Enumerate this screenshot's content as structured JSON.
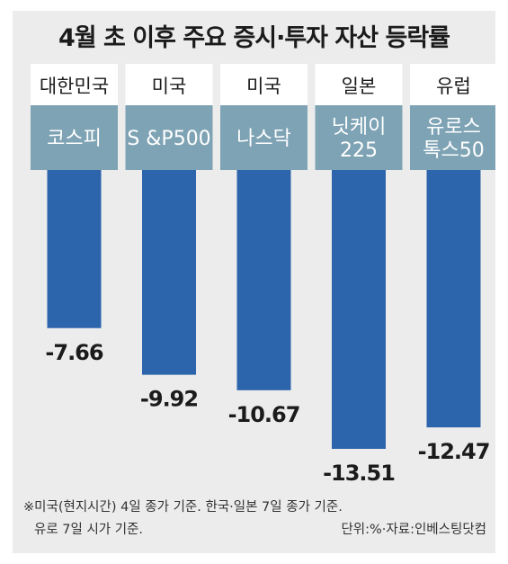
{
  "colors": {
    "background": "#edecec",
    "header_box": "#ffffff",
    "label_band": "#7ea3b4",
    "bar": "#2d65ad",
    "label_text": "#ffffff",
    "value_text": "#1b1b1b"
  },
  "chart_data": {
    "type": "bar",
    "title": "4월 초 이후 주요 증시·투자 자산 등락률",
    "countries": [
      "대한민국",
      "미국",
      "미국",
      "일본",
      "유럽"
    ],
    "categories": [
      [
        "코스피"
      ],
      [
        "S &P500"
      ],
      [
        "나스닥"
      ],
      [
        "닛케이",
        "225"
      ],
      [
        "유로스",
        "톡스50"
      ]
    ],
    "values": [
      -7.66,
      -9.92,
      -10.67,
      -13.51,
      -12.47
    ],
    "value_labels": [
      "-7.66",
      "-9.92",
      "-10.67",
      "-13.51",
      "-12.47"
    ],
    "ylim": [
      -13.51,
      0
    ],
    "grid": false,
    "legend": "none"
  },
  "footnote": {
    "line1": "※미국(현지시간) 4일 종가 기준. 한국·일본 7일 종가 기준.",
    "line2_left": "유로 7일 시가 기준.",
    "line2_right": "단위:%·자료:인베스팅닷컴"
  }
}
